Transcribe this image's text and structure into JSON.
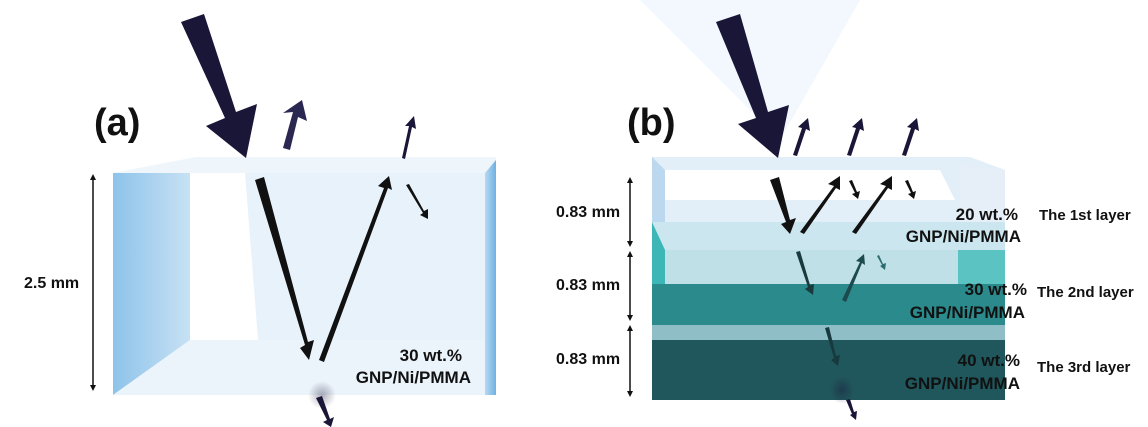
{
  "panel_a": {
    "label": "(a)",
    "thickness": "2.5 mm",
    "material_line1": "30 wt.%",
    "material_line2": "GNP/Ni/PMMA"
  },
  "panel_b": {
    "label": "(b)",
    "layers": [
      {
        "thickness": "0.83 mm",
        "material_line1": "20 wt.%",
        "material_line2": "GNP/Ni/PMMA",
        "name": "The 1st layer"
      },
      {
        "thickness": "0.83 mm",
        "material_line1": "30 wt.%",
        "material_line2": "GNP/Ni/PMMA",
        "name": "The 2nd layer"
      },
      {
        "thickness": "0.83 mm",
        "material_line1": "40 wt.%",
        "material_line2": "GNP/Ni/PMMA",
        "name": "The 3rd layer"
      }
    ]
  },
  "colors": {
    "arrow": "#1a1638",
    "layer1": "#dfeef8",
    "layer2": "#3bb3b3",
    "layer3": "#1f5257",
    "block_a": "#e3f0fa"
  }
}
